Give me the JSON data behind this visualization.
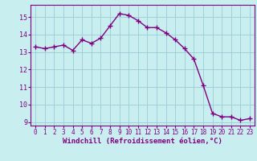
{
  "x": [
    0,
    1,
    2,
    3,
    4,
    5,
    6,
    7,
    8,
    9,
    10,
    11,
    12,
    13,
    14,
    15,
    16,
    17,
    18,
    19,
    20,
    21,
    22,
    23
  ],
  "y": [
    13.3,
    13.2,
    13.3,
    13.4,
    13.1,
    13.7,
    13.5,
    13.8,
    14.5,
    15.2,
    15.1,
    14.8,
    14.4,
    14.4,
    14.1,
    13.7,
    13.2,
    12.6,
    11.1,
    9.5,
    9.3,
    9.3,
    9.1,
    9.2
  ],
  "line_color": "#800080",
  "marker": "+",
  "marker_size": 4,
  "marker_linewidth": 1.0,
  "background_color": "#c8eef0",
  "grid_color": "#a0d0d8",
  "xlabel": "Windchill (Refroidissement éolien,°C)",
  "xlim": [
    -0.5,
    23.5
  ],
  "ylim": [
    8.8,
    15.7
  ],
  "yticks": [
    9,
    10,
    11,
    12,
    13,
    14,
    15
  ],
  "xticks": [
    0,
    1,
    2,
    3,
    4,
    5,
    6,
    7,
    8,
    9,
    10,
    11,
    12,
    13,
    14,
    15,
    16,
    17,
    18,
    19,
    20,
    21,
    22,
    23
  ],
  "tick_labelsize": 5.5,
  "xlabel_fontsize": 6.5,
  "line_width": 1.0,
  "spine_color": "#800080",
  "tick_color": "#800080",
  "label_color": "#800080"
}
